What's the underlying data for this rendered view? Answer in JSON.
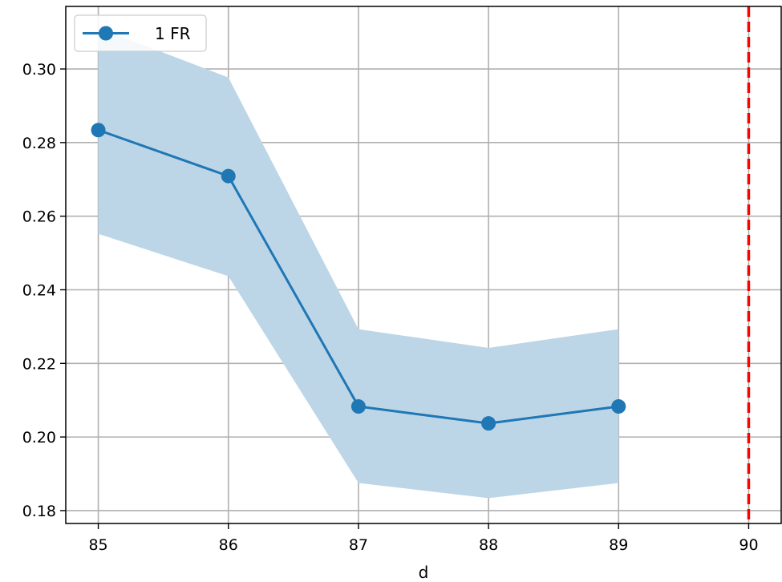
{
  "chart_data": {
    "type": "line",
    "title": "",
    "xlabel": "d",
    "ylabel": "",
    "x": [
      85,
      86,
      87,
      88,
      89
    ],
    "xlim": [
      84.75,
      90.25
    ],
    "ylim": [
      0.1765,
      0.317
    ],
    "xticks": [
      85,
      86,
      87,
      88,
      89,
      90
    ],
    "xtick_labels": [
      "85",
      "86",
      "87",
      "88",
      "89",
      "90"
    ],
    "yticks": [
      0.18,
      0.2,
      0.22,
      0.24,
      0.26,
      0.28,
      0.3
    ],
    "ytick_labels": [
      "0.18",
      "0.20",
      "0.22",
      "0.24",
      "0.26",
      "0.28",
      "0.30"
    ],
    "grid": true,
    "legend": {
      "position": "top-left"
    },
    "series": [
      {
        "name": "1 FR",
        "values": [
          0.2834,
          0.2709,
          0.2083,
          0.2037,
          0.2083
        ],
        "band_upper": [
          0.3112,
          0.2977,
          0.2293,
          0.2242,
          0.2293
        ],
        "band_lower": [
          0.2552,
          0.2437,
          0.1875,
          0.1834,
          0.1875
        ],
        "color": "#1f77b4",
        "band_color": "#bcd6e8",
        "marker": "circle"
      }
    ],
    "reference_lines": [
      {
        "orientation": "vertical",
        "x": 90,
        "color": "#ff0000",
        "style": "dashed"
      }
    ],
    "grid_color": "#b0b0b0"
  }
}
